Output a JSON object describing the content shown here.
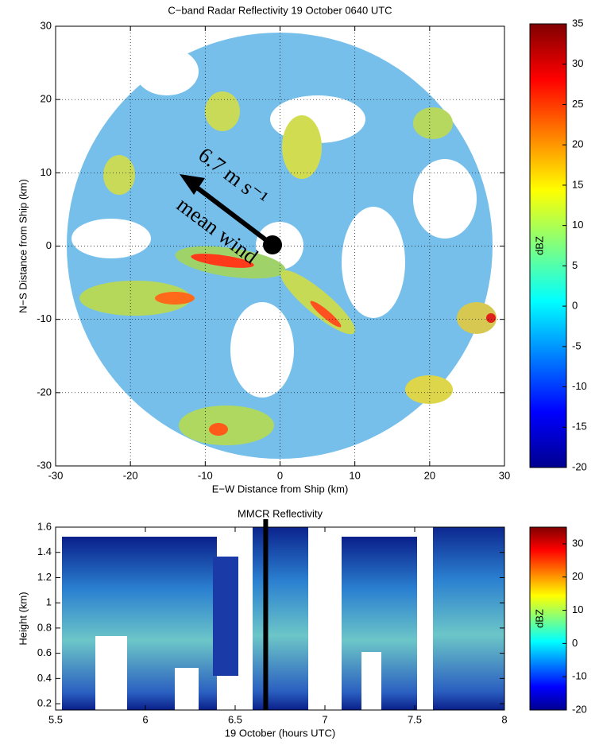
{
  "chart_data": [
    {
      "type": "heatmap",
      "title": "C−band Radar Reflectivity 19 October 0640 UTC",
      "x_label": "E−W Distance from Ship (km)",
      "y_label": "N−S Distance from Ship (km)",
      "xlim": [
        -30,
        30
      ],
      "xticks": [
        -30,
        -20,
        -10,
        0,
        10,
        20,
        30
      ],
      "ylim": [
        -30,
        30
      ],
      "yticks": [
        -30,
        -20,
        -10,
        0,
        10,
        20,
        30
      ],
      "grid": true,
      "colorbar": {
        "label": "dBZ",
        "lim": [
          -20,
          35
        ],
        "ticks": [
          -20,
          -15,
          -10,
          -5,
          0,
          5,
          10,
          15,
          20,
          25,
          30,
          35
        ]
      },
      "annotations": [
        "6.7 m s⁻¹",
        "mean wind"
      ]
    },
    {
      "type": "heatmap",
      "title": "MMCR Reflectivity",
      "x_label": "19 October (hours UTC)",
      "y_label": "Height (km)",
      "xlim": [
        5.5,
        8
      ],
      "xticks": [
        5.5,
        6,
        6.5,
        7,
        7.5,
        8
      ],
      "ylim": [
        0.15,
        1.6
      ],
      "yticks": [
        0.2,
        0.4,
        0.6,
        0.8,
        1,
        1.2,
        1.4,
        1.6
      ],
      "grid": false,
      "marker_x": 6.67,
      "colorbar": {
        "label": "dBZ",
        "lim": [
          -20,
          35
        ],
        "ticks": [
          -20,
          -10,
          0,
          10,
          20,
          30
        ]
      }
    }
  ]
}
